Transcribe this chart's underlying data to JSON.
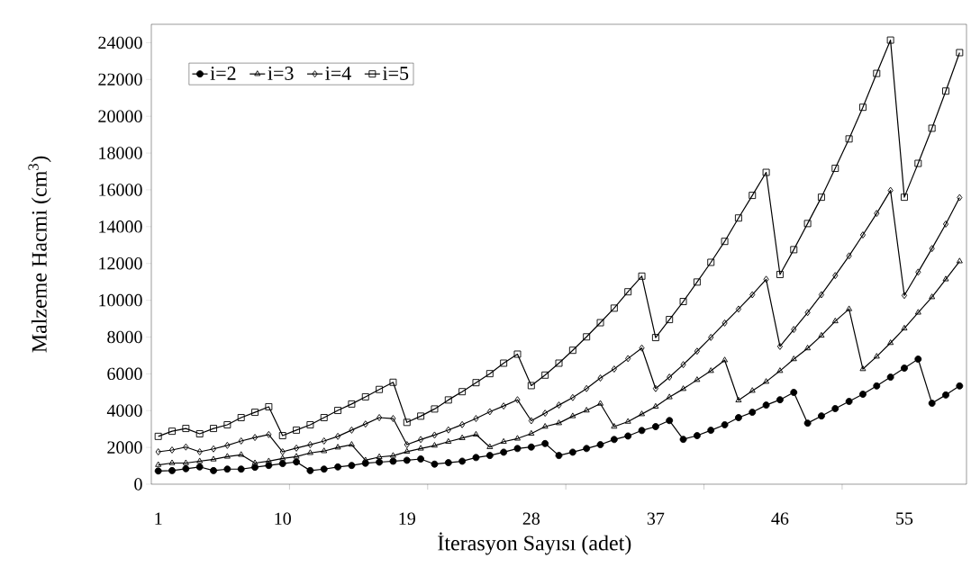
{
  "chart_data": {
    "type": "line",
    "xlabel": "İterasyon Sayısı (adet)",
    "ylabel": "Malzeme Hacmi (cm$^{3}$)",
    "categories": [
      "1",
      null,
      null,
      null,
      null,
      null,
      null,
      null,
      null,
      "10",
      null,
      null,
      null,
      null,
      null,
      null,
      null,
      null,
      "19",
      null,
      null,
      null,
      null,
      null,
      null,
      null,
      null,
      "28",
      null,
      null,
      null,
      null,
      null,
      null,
      null,
      null,
      "37",
      null,
      null,
      null,
      null,
      null,
      null,
      null,
      null,
      "46",
      null,
      null,
      null,
      null,
      null,
      null,
      null,
      null,
      "55",
      null,
      null,
      null,
      null
    ],
    "ylim": [
      0,
      25000
    ],
    "yticks": [
      0,
      2000,
      4000,
      6000,
      8000,
      10000,
      12000,
      14000,
      16000,
      18000,
      20000,
      22000,
      24000
    ],
    "legend": "top left",
    "grid": false,
    "line_style": "solid",
    "series": [
      {
        "name": "i=2",
        "color": "#000000",
        "marker": "circle",
        "values": [
          720,
          740,
          840,
          940,
          740,
          820,
          820,
          920,
          1020,
          1120,
          1210,
          740,
          820,
          940,
          1020,
          1140,
          1200,
          1250,
          1300,
          1370,
          1090,
          1170,
          1250,
          1450,
          1560,
          1740,
          1940,
          2020,
          2210,
          1560,
          1740,
          1940,
          2150,
          2430,
          2620,
          2920,
          3130,
          3460,
          2440,
          2640,
          2930,
          3230,
          3620,
          3910,
          4300,
          4590,
          4990,
          3320,
          3710,
          4110,
          4500,
          4890,
          5340,
          5820,
          6310,
          6800,
          4400,
          4850,
          5340
        ]
      },
      {
        "name": "i=3",
        "color": "#000000",
        "marker": "triangle",
        "values": [
          1050,
          1150,
          1150,
          1250,
          1350,
          1500,
          1600,
          1150,
          1250,
          1400,
          1500,
          1700,
          1800,
          2000,
          2150,
          1300,
          1480,
          1550,
          1770,
          1940,
          2100,
          2310,
          2510,
          2700,
          2020,
          2310,
          2480,
          2750,
          3130,
          3320,
          3700,
          4010,
          4380,
          3130,
          3400,
          3810,
          4220,
          4730,
          5180,
          5670,
          6160,
          6740,
          4560,
          5080,
          5570,
          6160,
          6800,
          7390,
          8080,
          8860,
          9520,
          6260,
          6940,
          7680,
          8470,
          9330,
          10170,
          11140,
          12120
        ]
      },
      {
        "name": "i=4",
        "color": "#000000",
        "marker": "diamond",
        "values": [
          1760,
          1860,
          2020,
          1760,
          1920,
          2110,
          2350,
          2540,
          2700,
          1760,
          1960,
          2150,
          2350,
          2600,
          2940,
          3270,
          3620,
          3570,
          2150,
          2430,
          2670,
          2950,
          3240,
          3570,
          3940,
          4250,
          4590,
          3450,
          3860,
          4300,
          4710,
          5200,
          5770,
          6260,
          6830,
          7400,
          5200,
          5820,
          6500,
          7230,
          7980,
          8760,
          9520,
          10300,
          11140,
          7490,
          8410,
          9330,
          10300,
          11340,
          12410,
          13550,
          14720,
          15970,
          10260,
          11530,
          12810,
          14140,
          15580
        ]
      },
      {
        "name": "i=5",
        "color": "#000000",
        "marker": "square",
        "values": [
          2600,
          2880,
          3030,
          2740,
          3030,
          3230,
          3620,
          3910,
          4210,
          2640,
          2940,
          3230,
          3620,
          4010,
          4360,
          4750,
          5150,
          5540,
          3360,
          3700,
          4090,
          4580,
          5030,
          5520,
          6010,
          6580,
          7070,
          5360,
          5930,
          6580,
          7280,
          8010,
          8780,
          9570,
          10460,
          11310,
          7970,
          8950,
          9930,
          10990,
          12060,
          13200,
          14470,
          15700,
          16950,
          11400,
          12750,
          14170,
          15600,
          17170,
          18770,
          20490,
          22330,
          24140,
          15600,
          17440,
          19350,
          21370,
          23460
        ]
      }
    ]
  }
}
